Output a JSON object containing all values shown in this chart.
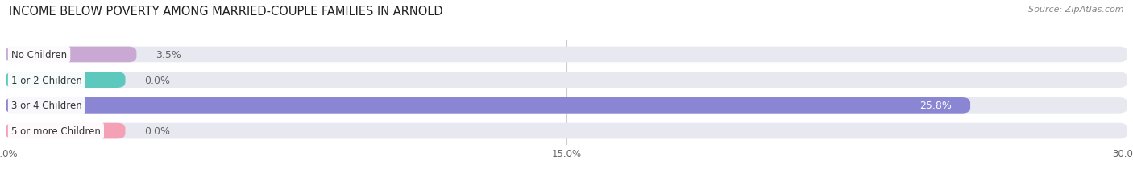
{
  "title": "INCOME BELOW POVERTY AMONG MARRIED-COUPLE FAMILIES IN ARNOLD",
  "source": "Source: ZipAtlas.com",
  "categories": [
    "No Children",
    "1 or 2 Children",
    "3 or 4 Children",
    "5 or more Children"
  ],
  "values": [
    3.5,
    0.0,
    25.8,
    0.0
  ],
  "display_values": [
    "3.5%",
    "0.0%",
    "25.8%",
    "0.0%"
  ],
  "bar_colors": [
    "#c9a8d4",
    "#5cc8be",
    "#8b86d4",
    "#f4a0b5"
  ],
  "bar_bg_color": "#e8e8f0",
  "xlim": [
    0,
    30.0
  ],
  "xticks": [
    0.0,
    15.0,
    30.0
  ],
  "xtick_labels": [
    "0.0%",
    "15.0%",
    "30.0%"
  ],
  "label_color_inside": "#ffffff",
  "label_color_outside": "#666666",
  "bar_height": 0.62,
  "title_fontsize": 10.5,
  "source_fontsize": 8,
  "label_fontsize": 9,
  "tick_fontsize": 8.5,
  "cat_fontsize": 8.5,
  "background_color": "#ffffff",
  "zero_bar_width": 3.2,
  "label_threshold": 15.0
}
